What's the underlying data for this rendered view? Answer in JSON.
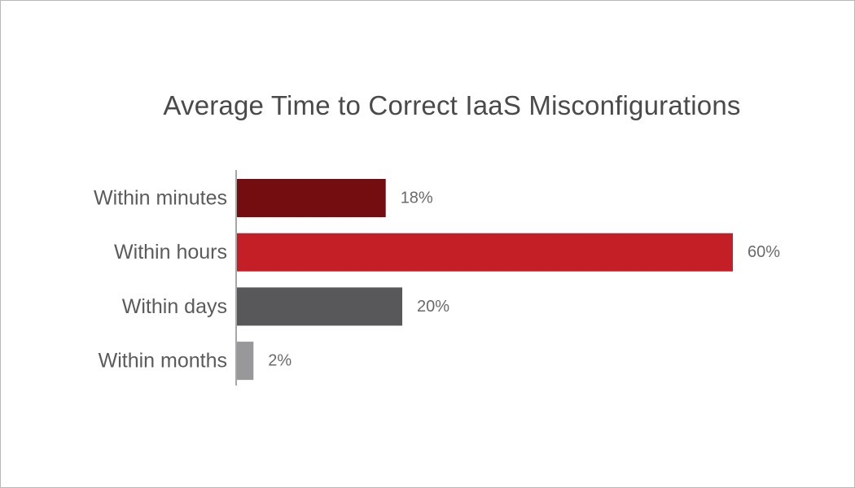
{
  "chart_data": {
    "type": "bar",
    "orientation": "horizontal",
    "title": "Average Time to Correct IaaS Misconfigurations",
    "categories": [
      "Within minutes",
      "Within hours",
      "Within days",
      "Within months"
    ],
    "values": [
      18,
      60,
      20,
      2
    ],
    "value_labels": [
      "18%",
      "60%",
      "20%",
      "2%"
    ],
    "colors": [
      "#730d10",
      "#c41e27",
      "#58585a",
      "#98989b"
    ],
    "xlim": [
      0,
      60
    ],
    "grid": false,
    "legend": "none"
  }
}
